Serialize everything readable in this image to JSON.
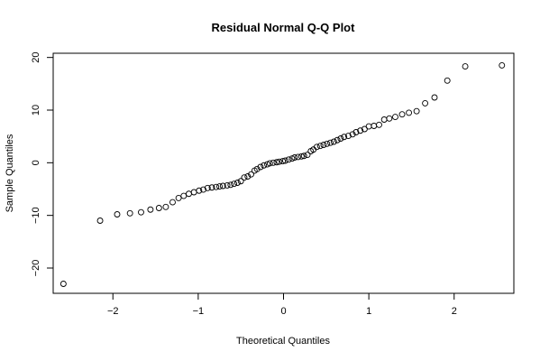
{
  "chart_data": {
    "type": "scatter",
    "title": "Residual Normal Q-Q Plot",
    "xlabel": "Theoretical Quantiles",
    "ylabel": "Sample Quantiles",
    "xlim": [
      -2.7,
      2.7
    ],
    "ylim": [
      -24.8,
      20.8
    ],
    "x_ticks": [
      -2,
      -1,
      0,
      1,
      2
    ],
    "y_ticks": [
      -20,
      -10,
      0,
      10,
      20
    ],
    "grid": false,
    "legend": "none",
    "x": [
      -2.58,
      -2.15,
      -1.95,
      -1.8,
      -1.67,
      -1.56,
      -1.46,
      -1.38,
      -1.3,
      -1.23,
      -1.17,
      -1.11,
      -1.05,
      -0.99,
      -0.94,
      -0.89,
      -0.84,
      -0.79,
      -0.75,
      -0.71,
      -0.66,
      -0.62,
      -0.58,
      -0.54,
      -0.5,
      -0.46,
      -0.42,
      -0.38,
      -0.34,
      -0.31,
      -0.27,
      -0.23,
      -0.19,
      -0.16,
      -0.12,
      -0.08,
      -0.05,
      -0.01,
      0.02,
      0.06,
      0.1,
      0.13,
      0.17,
      0.21,
      0.24,
      0.28,
      0.32,
      0.35,
      0.39,
      0.43,
      0.47,
      0.51,
      0.55,
      0.59,
      0.63,
      0.67,
      0.71,
      0.76,
      0.81,
      0.85,
      0.9,
      0.95,
      1.0,
      1.06,
      1.12,
      1.18,
      1.24,
      1.31,
      1.39,
      1.47,
      1.56,
      1.66,
      1.77,
      1.92,
      2.13,
      2.56
    ],
    "y": [
      -23.0,
      -11.0,
      -9.8,
      -9.6,
      -9.4,
      -8.9,
      -8.6,
      -8.4,
      -7.5,
      -6.7,
      -6.3,
      -5.9,
      -5.6,
      -5.3,
      -5.1,
      -4.8,
      -4.7,
      -4.6,
      -4.5,
      -4.4,
      -4.3,
      -4.2,
      -4.0,
      -3.8,
      -3.5,
      -2.8,
      -2.6,
      -2.2,
      -1.5,
      -1.2,
      -0.8,
      -0.5,
      -0.3,
      -0.1,
      0.0,
      0.1,
      0.2,
      0.3,
      0.4,
      0.6,
      0.8,
      1.0,
      1.1,
      1.2,
      1.3,
      1.5,
      2.2,
      2.5,
      3.0,
      3.2,
      3.4,
      3.6,
      3.8,
      4.0,
      4.3,
      4.6,
      4.9,
      5.1,
      5.4,
      5.8,
      6.1,
      6.4,
      6.9,
      7.0,
      7.2,
      8.2,
      8.4,
      8.7,
      9.2,
      9.5,
      9.8,
      11.3,
      12.4,
      15.6,
      18.3,
      18.5
    ]
  }
}
